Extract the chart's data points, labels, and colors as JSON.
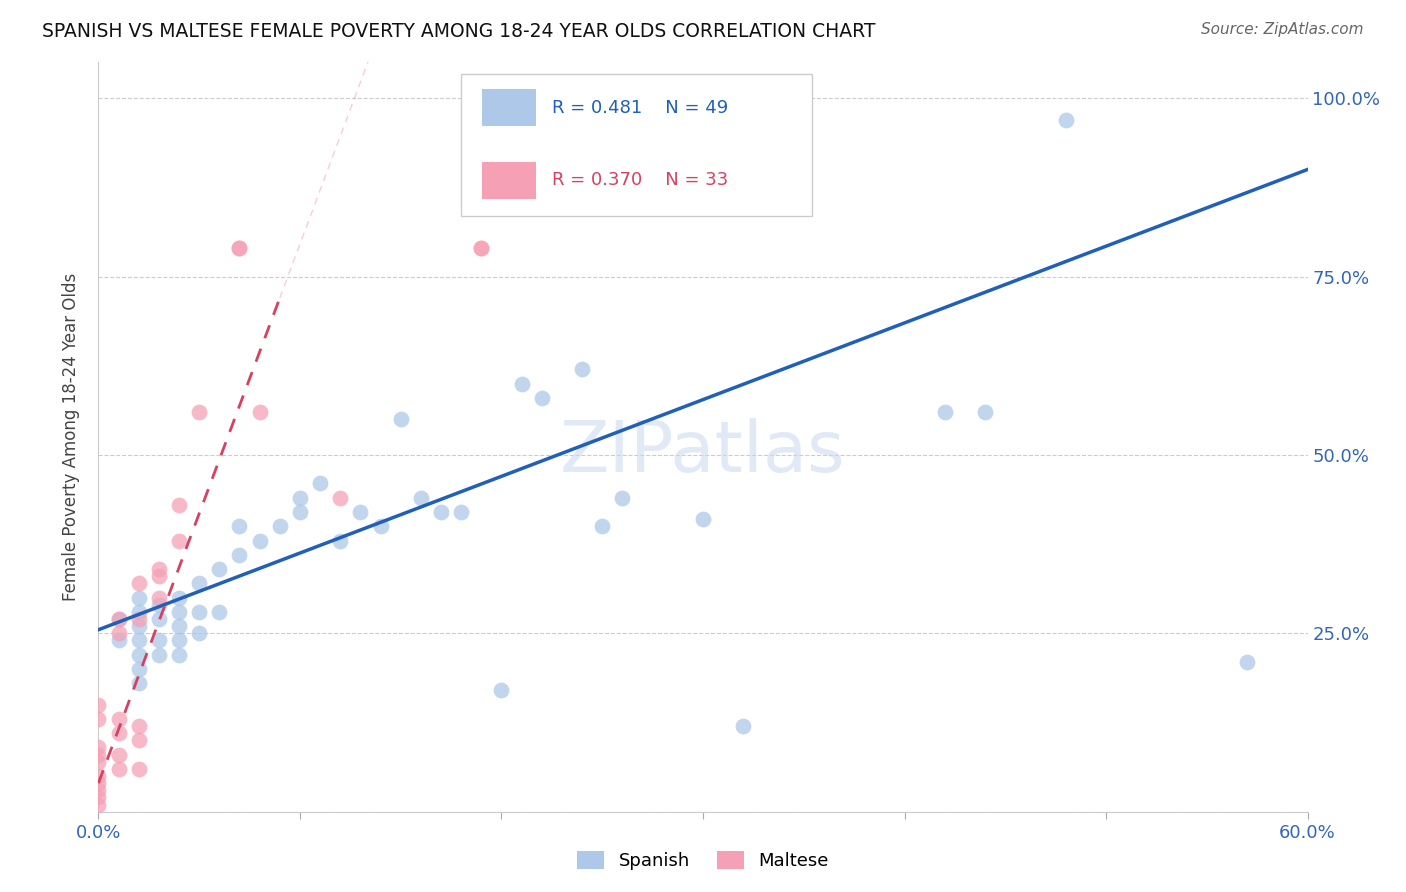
{
  "title": "SPANISH VS MALTESE FEMALE POVERTY AMONG 18-24 YEAR OLDS CORRELATION CHART",
  "source": "Source: ZipAtlas.com",
  "ylabel": "Female Poverty Among 18-24 Year Olds",
  "xlim": [
    0.0,
    0.6
  ],
  "ylim": [
    0.0,
    1.05
  ],
  "spanish_R": 0.481,
  "spanish_N": 49,
  "maltese_R": 0.37,
  "maltese_N": 33,
  "spanish_color": "#adc8e8",
  "maltese_color": "#f5a0b5",
  "spanish_line_color": "#2060b8",
  "maltese_line_color": "#d84060",
  "watermark": "ZIPatlas",
  "spanish_x": [
    0.01,
    0.01,
    0.02,
    0.02,
    0.02,
    0.02,
    0.02,
    0.02,
    0.02,
    0.03,
    0.03,
    0.03,
    0.03,
    0.04,
    0.04,
    0.04,
    0.04,
    0.04,
    0.05,
    0.05,
    0.05,
    0.06,
    0.06,
    0.07,
    0.07,
    0.08,
    0.09,
    0.1,
    0.1,
    0.11,
    0.12,
    0.13,
    0.14,
    0.15,
    0.16,
    0.17,
    0.18,
    0.2,
    0.21,
    0.22,
    0.24,
    0.25,
    0.26,
    0.3,
    0.32,
    0.42,
    0.44,
    0.48,
    0.57
  ],
  "spanish_y": [
    0.27,
    0.24,
    0.3,
    0.28,
    0.26,
    0.24,
    0.22,
    0.2,
    0.18,
    0.29,
    0.27,
    0.24,
    0.22,
    0.3,
    0.28,
    0.26,
    0.24,
    0.22,
    0.32,
    0.28,
    0.25,
    0.34,
    0.28,
    0.4,
    0.36,
    0.38,
    0.4,
    0.44,
    0.42,
    0.46,
    0.38,
    0.42,
    0.4,
    0.55,
    0.44,
    0.42,
    0.42,
    0.17,
    0.6,
    0.58,
    0.62,
    0.4,
    0.44,
    0.41,
    0.12,
    0.56,
    0.56,
    0.97,
    0.21
  ],
  "maltese_x": [
    0.0,
    0.0,
    0.0,
    0.0,
    0.0,
    0.0,
    0.0,
    0.0,
    0.0,
    0.0,
    0.01,
    0.01,
    0.01,
    0.01,
    0.01,
    0.01,
    0.02,
    0.02,
    0.02,
    0.02,
    0.02,
    0.03,
    0.03,
    0.03,
    0.04,
    0.04,
    0.05,
    0.07,
    0.07,
    0.08,
    0.12,
    0.19,
    0.19
  ],
  "maltese_y": [
    0.05,
    0.04,
    0.03,
    0.02,
    0.01,
    0.09,
    0.08,
    0.07,
    0.13,
    0.15,
    0.06,
    0.08,
    0.11,
    0.13,
    0.25,
    0.27,
    0.06,
    0.1,
    0.12,
    0.27,
    0.32,
    0.3,
    0.34,
    0.33,
    0.38,
    0.43,
    0.56,
    0.79,
    0.79,
    0.56,
    0.44,
    0.79,
    0.79
  ],
  "blue_line_x0": 0.0,
  "blue_line_y0": 0.255,
  "blue_line_x1": 0.6,
  "blue_line_y1": 0.9,
  "pink_line_x0": 0.0,
  "pink_line_y0": 0.04,
  "pink_line_x1": 0.09,
  "pink_line_y1": 0.72
}
